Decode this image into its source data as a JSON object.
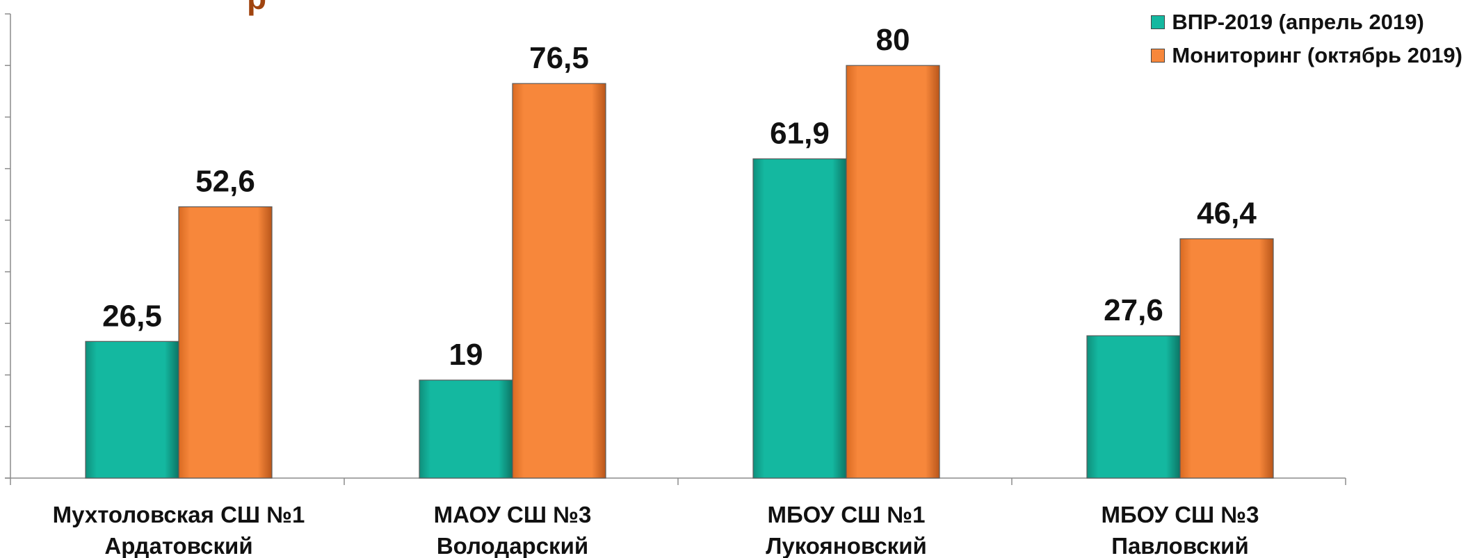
{
  "title_fragment": "р",
  "legend": [
    {
      "name": "ВПР-2019 (апрель 2019)",
      "color": "#14b8a0"
    },
    {
      "name": "Мониторинг (октябрь 2019)",
      "color": "#f7873b"
    }
  ],
  "chart_data": {
    "type": "bar",
    "categories": [
      [
        "Мухтоловская СШ №1",
        "Ардатовский"
      ],
      [
        "МАОУ СШ №3",
        "Володарский"
      ],
      [
        "МБОУ СШ №1",
        "Лукояновский"
      ],
      [
        "МБОУ СШ №3",
        "Павловский"
      ]
    ],
    "series": [
      {
        "name": "ВПР-2019 (апрель 2019)",
        "values": [
          26.5,
          19,
          61.9,
          27.6
        ],
        "labels": [
          "26,5",
          "19",
          "61,9",
          "27,6"
        ],
        "color": "#14b8a0"
      },
      {
        "name": "Мониторинг (октябрь 2019)",
        "values": [
          52.6,
          76.5,
          80,
          46.4
        ],
        "labels": [
          "52,6",
          "76,5",
          "80",
          "46,4"
        ],
        "color": "#f7873b"
      }
    ],
    "ylim": [
      0,
      90
    ],
    "grid": false,
    "legend_position": "top-right"
  }
}
